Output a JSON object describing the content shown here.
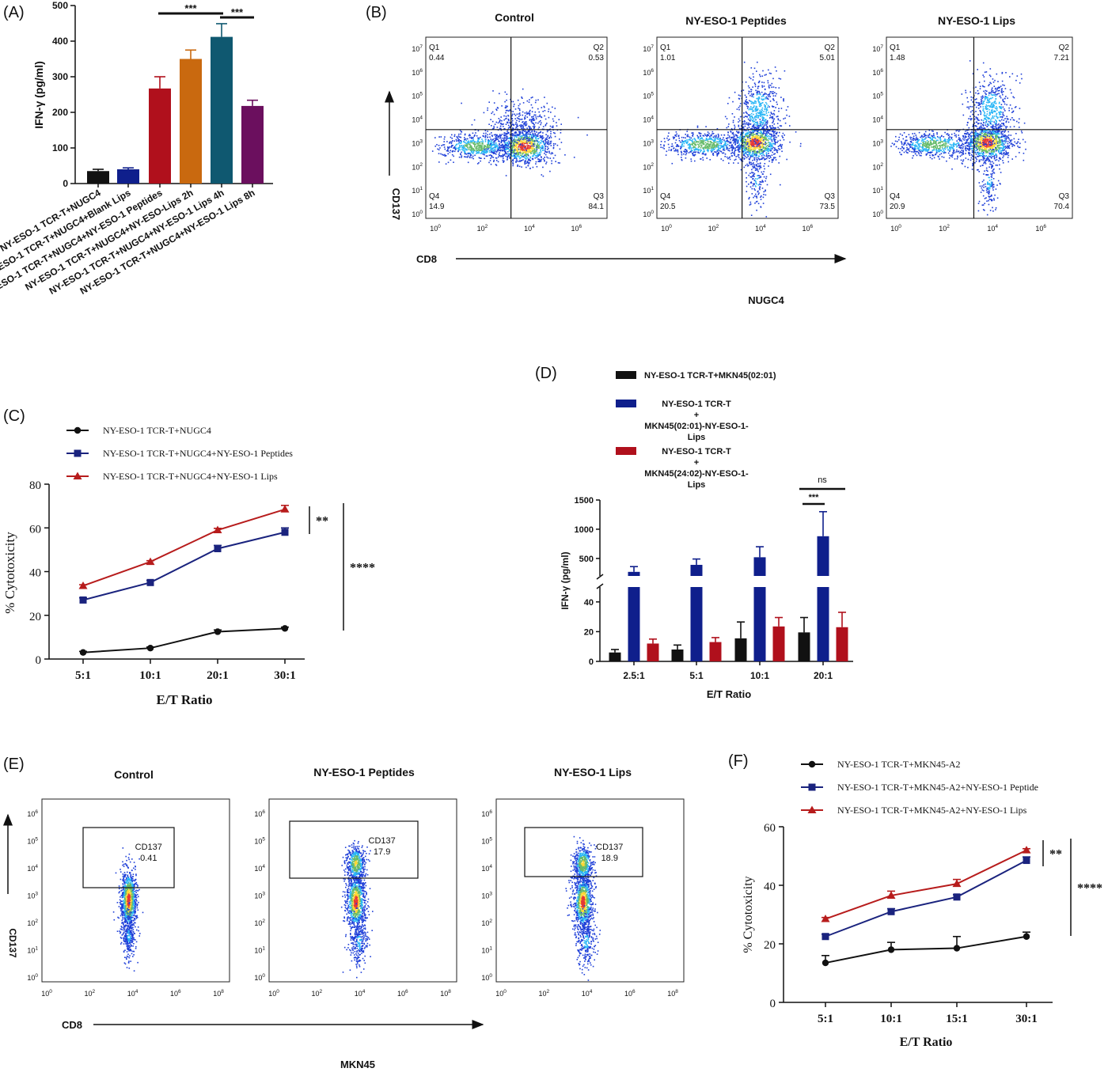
{
  "panels": {
    "A": {
      "letter": "(A)",
      "chart_data": {
        "type": "bar",
        "ylabel": "IFN-γ (pg/ml)",
        "ylim": [
          0,
          500
        ],
        "yticks": [
          0,
          100,
          200,
          300,
          400,
          500
        ],
        "categories": [
          "NY-ESO-1 TCR-T+NUGC4",
          "NY-ESO-1 TCR-T+NUGC4+Blank Lips",
          "NY-ESO-1 TCR-T+NUGC4+NY-ESO-1 Peptides",
          "NY-ESO-1 TCR-T+NUGC4+NY-ESO-Lips 2h",
          "NY-ESO-1 TCR-T+NUGC4+NY-ESO-1 Lips 4h",
          "NY-ESO-1 TCR-T+NUGC4+NY-ESO-1 Lips 8h"
        ],
        "values": [
          35,
          40,
          267,
          350,
          412,
          218
        ],
        "errors": [
          5,
          4,
          33,
          25,
          37,
          16
        ],
        "colors": [
          "#111111",
          "#0f1f8c",
          "#b0101c",
          "#c9690f",
          "#0f5870",
          "#6b0f5e"
        ],
        "significance": [
          {
            "from": 2,
            "to": 4,
            "label": "***"
          },
          {
            "from": 4,
            "to": 5,
            "label": "***"
          }
        ]
      }
    },
    "B": {
      "letter": "(B)",
      "cell_line": "NUGC4",
      "x_axis_label": "CD8",
      "y_axis_label": "CD137",
      "tick_exponents": [
        "0",
        "1",
        "2",
        "3",
        "4",
        "5",
        "6",
        "7"
      ],
      "x_tick_exponents": [
        "0",
        "2",
        "4",
        "6"
      ],
      "plots": [
        {
          "title": "Control",
          "q1": "0.44",
          "q2": "0.53",
          "q3": "84.1",
          "q4": "14.9"
        },
        {
          "title": "NY-ESO-1 Peptides",
          "q1": "1.01",
          "q2": "5.01",
          "q3": "73.5",
          "q4": "20.5"
        },
        {
          "title": "NY-ESO-1 Lips",
          "q1": "1.48",
          "q2": "7.21",
          "q3": "70.4",
          "q4": "20.9"
        }
      ],
      "quadrant_labels": [
        "Q1",
        "Q2",
        "Q3",
        "Q4"
      ]
    },
    "C": {
      "letter": "(C)",
      "chart_data": {
        "type": "line",
        "xlabel": "E/T Ratio",
        "ylabel": "% Cytotoxicity",
        "categories": [
          "5:1",
          "10:1",
          "20:1",
          "30:1"
        ],
        "ylim": [
          0,
          80
        ],
        "yticks": [
          0,
          20,
          40,
          60,
          80
        ],
        "series": [
          {
            "name": "NY-ESO-1 TCR-T+NUGC4",
            "values": [
              3,
              5,
              12.5,
              14
            ],
            "errors": [
              0.5,
              0.5,
              0.8,
              0.6
            ],
            "color": "#111111",
            "marker": "circle"
          },
          {
            "name": "NY-ESO-1 TCR-T+NUGC4+NY-ESO-1 Peptides",
            "values": [
              27,
              35,
              50.5,
              58
            ],
            "errors": [
              1,
              1,
              1.5,
              2
            ],
            "color": "#1a237e",
            "marker": "square"
          },
          {
            "name": "NY-ESO-1 TCR-T+NUGC4+NY-ESO-1 Lips",
            "values": [
              33.5,
              44.5,
              59,
              68.5
            ],
            "errors": [
              0.5,
              0.5,
              0.8,
              1.8
            ],
            "color": "#b71c1c",
            "marker": "triangle"
          }
        ],
        "significance": [
          {
            "label": "**"
          },
          {
            "label": "****"
          }
        ]
      }
    },
    "D": {
      "letter": "(D)",
      "chart_data": {
        "type": "bar",
        "xlabel": "E/T Ratio",
        "ylabel": "IFN-γ (pg/ml)",
        "categories": [
          "2.5:1",
          "5:1",
          "10:1",
          "20:1"
        ],
        "broken_axis": {
          "lower": [
            0,
            50
          ],
          "upper": [
            200,
            1500
          ]
        },
        "lower_ticks": [
          0,
          20,
          40
        ],
        "upper_ticks": [
          500,
          1000,
          1500
        ],
        "series": [
          {
            "name": "NY-ESO-1 TCR-T+MKN45(02:01)",
            "values": [
              6,
              8,
              15.5,
              19.5
            ],
            "errors": [
              2,
              3,
              11,
              10
            ],
            "color": "#111111"
          },
          {
            "name": "NY-ESO-1 TCR-T + MKN45(02:01)-NY-ESO-1-Lips",
            "values": [
              270,
              390,
              520,
              880
            ],
            "errors": [
              90,
              100,
              180,
              420
            ],
            "color": "#0f1f8c"
          },
          {
            "name": "NY-ESO-1 TCR-T + MKN45(24:02)-NY-ESO-1-Lips",
            "values": [
              12,
              13,
              23.5,
              23
            ],
            "errors": [
              3,
              3,
              6,
              10
            ],
            "color": "#b0101c"
          }
        ],
        "legend_lines": [
          [
            "NY-ESO-1 TCR-T+MKN45(02:01)"
          ],
          [
            "NY-ESO-1 TCR-T",
            "+",
            "MKN45(02:01)-NY-ESO-1-",
            "Lips"
          ],
          [
            "NY-ESO-1 TCR-T",
            "+",
            "MKN45(24:02)-NY-ESO-1-",
            "Lips"
          ]
        ],
        "significance": [
          {
            "label": "***"
          },
          {
            "label": "ns"
          }
        ]
      }
    },
    "E": {
      "letter": "(E)",
      "cell_line": "MKN45",
      "x_axis_label": "CD8",
      "y_axis_label": "CD137",
      "tick_exponents": [
        "0",
        "1",
        "2",
        "3",
        "4",
        "5",
        "6"
      ],
      "x_tick_exponents": [
        "0",
        "2",
        "4",
        "6",
        "8"
      ],
      "gate_label": "CD137",
      "plots": [
        {
          "title": "Control",
          "value": "0.41"
        },
        {
          "title": "NY-ESO-1 Peptides",
          "value": "17.9"
        },
        {
          "title": "NY-ESO-1 Lips",
          "value": "18.9"
        }
      ]
    },
    "F": {
      "letter": "(F)",
      "chart_data": {
        "type": "line",
        "xlabel": "E/T Ratio",
        "ylabel": "% Cytotoxicity",
        "categories": [
          "5:1",
          "10:1",
          "15:1",
          "30:1"
        ],
        "ylim": [
          0,
          60
        ],
        "yticks": [
          0,
          20,
          40,
          60
        ],
        "series": [
          {
            "name": "NY-ESO-1 TCR-T+MKN45-A2",
            "values": [
              13.5,
              18,
              18.5,
              22.5
            ],
            "errors": [
              2.5,
              2.5,
              4,
              1.5
            ],
            "color": "#111111",
            "marker": "circle"
          },
          {
            "name": "NY-ESO-1 TCR-T+MKN45-A2+NY-ESO-1 Peptide",
            "values": [
              22.5,
              31,
              36,
              48.5
            ],
            "errors": [
              0.8,
              1,
              0.8,
              1.2
            ],
            "color": "#1a237e",
            "marker": "square"
          },
          {
            "name": "NY-ESO-1 TCR-T+MKN45-A2+NY-ESO-1 Lips",
            "values": [
              28.5,
              36.5,
              40.5,
              52
            ],
            "errors": [
              0.5,
              1.5,
              1.5,
              0.5
            ],
            "color": "#b71c1c",
            "marker": "triangle"
          }
        ],
        "significance": [
          {
            "label": "**"
          },
          {
            "label": "****"
          }
        ]
      }
    }
  }
}
